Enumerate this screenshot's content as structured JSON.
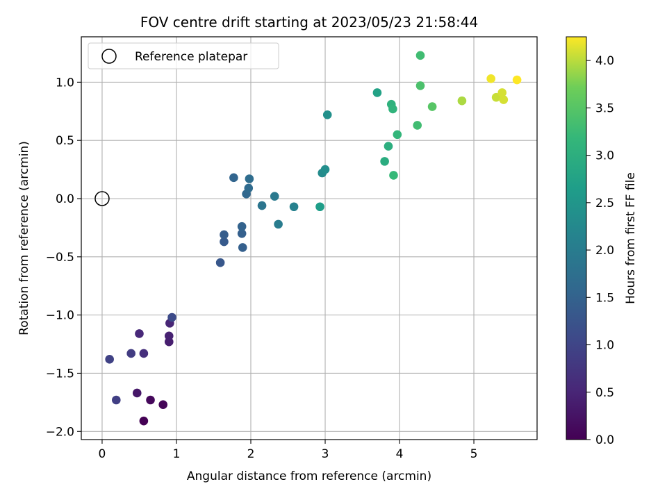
{
  "chart_data": {
    "type": "scatter",
    "title": "FOV centre drift starting at 2023/05/23 21:58:44",
    "xlabel": "Angular distance from reference (arcmin)",
    "ylabel": "Rotation from reference (arcmin)",
    "xlim": [
      -0.28,
      5.85
    ],
    "ylim": [
      -2.07,
      1.39
    ],
    "xticks": [
      0,
      1,
      2,
      3,
      4,
      5
    ],
    "xtick_labels": [
      "0",
      "1",
      "2",
      "3",
      "4",
      "5"
    ],
    "yticks": [
      -2.0,
      -1.5,
      -1.0,
      -0.5,
      0.0,
      0.5,
      1.0
    ],
    "ytick_labels": [
      "−2.0",
      "−1.5",
      "−1.0",
      "−0.5",
      "0.0",
      "0.5",
      "1.0"
    ],
    "grid": true,
    "legend": {
      "placement": "top-left",
      "entries": [
        "Reference platepar"
      ]
    },
    "reference_point": {
      "label": "Reference platepar",
      "x": 0.0,
      "y": 0.0
    },
    "colorbar": {
      "label": "Hours from first FF file",
      "colormap": "viridis",
      "range": [
        0.0,
        4.25
      ],
      "ticks": [
        0.0,
        0.5,
        1.0,
        1.5,
        2.0,
        2.5,
        3.0,
        3.5,
        4.0
      ],
      "tick_labels": [
        "0.0",
        "0.5",
        "1.0",
        "1.5",
        "2.0",
        "2.5",
        "3.0",
        "3.5",
        "4.0"
      ]
    },
    "points": [
      {
        "x": 0.56,
        "y": -1.91,
        "hours": 0.0
      },
      {
        "x": 0.82,
        "y": -1.77,
        "hours": 0.05
      },
      {
        "x": 0.65,
        "y": -1.73,
        "hours": 0.1
      },
      {
        "x": 0.47,
        "y": -1.67,
        "hours": 0.3
      },
      {
        "x": 0.9,
        "y": -1.23,
        "hours": 0.4
      },
      {
        "x": 0.9,
        "y": -1.18,
        "hours": 0.45
      },
      {
        "x": 0.91,
        "y": -1.07,
        "hours": 0.5
      },
      {
        "x": 0.5,
        "y": -1.16,
        "hours": 0.55
      },
      {
        "x": 0.56,
        "y": -1.33,
        "hours": 0.65
      },
      {
        "x": 0.39,
        "y": -1.33,
        "hours": 0.85
      },
      {
        "x": 0.19,
        "y": -1.73,
        "hours": 0.9
      },
      {
        "x": 0.1,
        "y": -1.38,
        "hours": 0.95
      },
      {
        "x": 0.94,
        "y": -1.02,
        "hours": 1.1
      },
      {
        "x": 1.59,
        "y": -0.55,
        "hours": 1.3
      },
      {
        "x": 1.64,
        "y": -0.37,
        "hours": 1.35
      },
      {
        "x": 1.64,
        "y": -0.31,
        "hours": 1.4
      },
      {
        "x": 1.89,
        "y": -0.42,
        "hours": 1.45
      },
      {
        "x": 1.88,
        "y": -0.3,
        "hours": 1.45
      },
      {
        "x": 1.88,
        "y": -0.24,
        "hours": 1.5
      },
      {
        "x": 1.77,
        "y": 0.18,
        "hours": 1.55
      },
      {
        "x": 1.94,
        "y": 0.04,
        "hours": 1.6
      },
      {
        "x": 1.97,
        "y": 0.09,
        "hours": 1.65
      },
      {
        "x": 1.98,
        "y": 0.17,
        "hours": 1.7
      },
      {
        "x": 2.15,
        "y": -0.06,
        "hours": 1.85
      },
      {
        "x": 2.32,
        "y": 0.02,
        "hours": 1.95
      },
      {
        "x": 2.37,
        "y": -0.22,
        "hours": 2.0
      },
      {
        "x": 2.58,
        "y": -0.07,
        "hours": 2.1
      },
      {
        "x": 2.93,
        "y": -0.07,
        "hours": 2.65
      },
      {
        "x": 2.96,
        "y": 0.22,
        "hours": 2.3
      },
      {
        "x": 3.0,
        "y": 0.25,
        "hours": 2.35
      },
      {
        "x": 3.03,
        "y": 0.72,
        "hours": 2.4
      },
      {
        "x": 3.7,
        "y": 0.91,
        "hours": 2.75
      },
      {
        "x": 3.8,
        "y": 0.32,
        "hours": 2.95
      },
      {
        "x": 3.85,
        "y": 0.45,
        "hours": 3.0
      },
      {
        "x": 3.89,
        "y": 0.81,
        "hours": 3.05
      },
      {
        "x": 3.91,
        "y": 0.77,
        "hours": 3.1
      },
      {
        "x": 3.92,
        "y": 0.2,
        "hours": 3.2
      },
      {
        "x": 3.97,
        "y": 0.55,
        "hours": 3.15
      },
      {
        "x": 4.24,
        "y": 0.63,
        "hours": 3.3
      },
      {
        "x": 4.28,
        "y": 1.23,
        "hours": 3.3
      },
      {
        "x": 4.28,
        "y": 0.97,
        "hours": 3.4
      },
      {
        "x": 4.44,
        "y": 0.79,
        "hours": 3.5
      },
      {
        "x": 4.84,
        "y": 0.84,
        "hours": 3.95
      },
      {
        "x": 5.23,
        "y": 1.03,
        "hours": 4.2
      },
      {
        "x": 5.3,
        "y": 0.87,
        "hours": 4.05
      },
      {
        "x": 5.38,
        "y": 0.91,
        "hours": 4.1
      },
      {
        "x": 5.4,
        "y": 0.85,
        "hours": 4.1
      },
      {
        "x": 5.58,
        "y": 1.02,
        "hours": 4.25
      }
    ]
  }
}
